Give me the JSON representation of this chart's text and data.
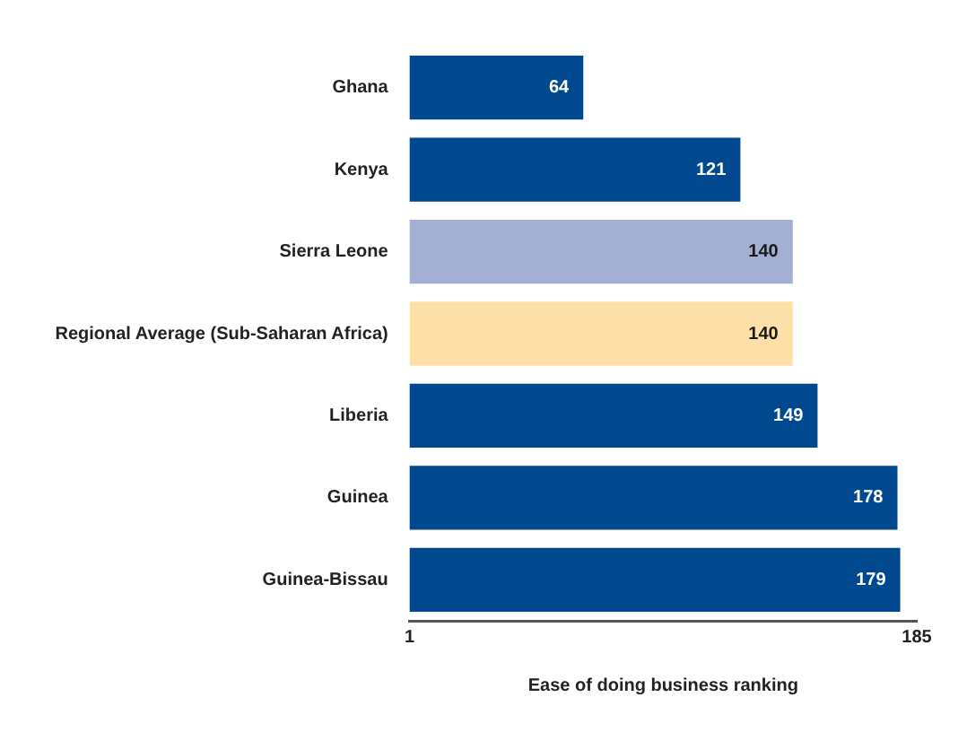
{
  "chart_data": {
    "type": "bar",
    "orientation": "horizontal",
    "xlabel": "Ease of doing business ranking",
    "categories": [
      "Ghana",
      "Kenya",
      "Sierra Leone",
      "Regional Average (Sub-Saharan Africa)",
      "Liberia",
      "Guinea",
      "Guinea-Bissau"
    ],
    "values": [
      64,
      121,
      140,
      140,
      149,
      178,
      179
    ],
    "colors": [
      "#00498f",
      "#00498f",
      "#a3afd3",
      "#fde0a8",
      "#00498f",
      "#00498f",
      "#00498f"
    ],
    "xlim": [
      1,
      185
    ],
    "xticks": [
      1,
      185
    ],
    "grid": false,
    "legend": false,
    "data_labels": true
  }
}
